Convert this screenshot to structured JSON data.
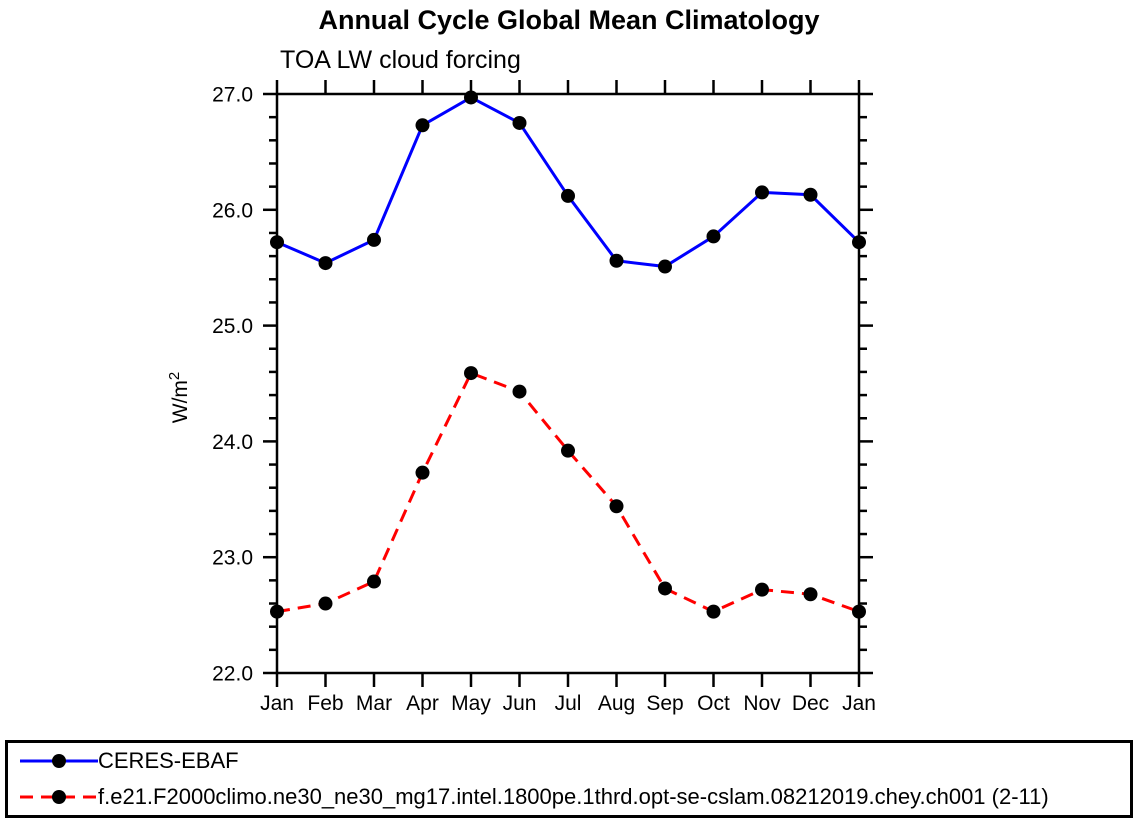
{
  "chart_data": {
    "type": "line",
    "title": "Annual Cycle Global Mean Climatology",
    "subtitle": "TOA LW cloud forcing",
    "ylabel": "W/m²",
    "xlabel": "",
    "x_categories": [
      "Jan",
      "Feb",
      "Mar",
      "Apr",
      "May",
      "Jun",
      "Jul",
      "Aug",
      "Sep",
      "Oct",
      "Nov",
      "Dec",
      "Jan"
    ],
    "ylim": [
      22.0,
      27.0
    ],
    "y_major_step": 1.0,
    "y_minor_step": 0.2,
    "y_tick_labels": [
      "22.0",
      "23.0",
      "24.0",
      "25.0",
      "26.0",
      "27.0"
    ],
    "grid": false,
    "legend_position": "bottom-outside-full-width",
    "series": [
      {
        "name": "CERES-EBAF",
        "color": "#0000ff",
        "line_style": "solid",
        "marker": "filled-circle",
        "marker_color": "#000000",
        "values": [
          25.72,
          25.54,
          25.74,
          26.73,
          26.97,
          26.75,
          26.12,
          25.56,
          25.51,
          25.77,
          26.15,
          26.13,
          25.72
        ]
      },
      {
        "name": "f.e21.F2000climo.ne30_ne30_mg17.intel.1800pe.1thrd.opt-se-cslam.08212019.chey.ch001 (2-11)",
        "color": "#ff0000",
        "line_style": "dashed",
        "marker": "filled-circle",
        "marker_color": "#000000",
        "values": [
          22.53,
          22.6,
          22.79,
          23.73,
          24.59,
          24.43,
          23.92,
          23.44,
          22.73,
          22.53,
          22.72,
          22.68,
          22.53
        ]
      }
    ],
    "colors": {
      "axis": "#000000",
      "background": "#ffffff"
    }
  }
}
